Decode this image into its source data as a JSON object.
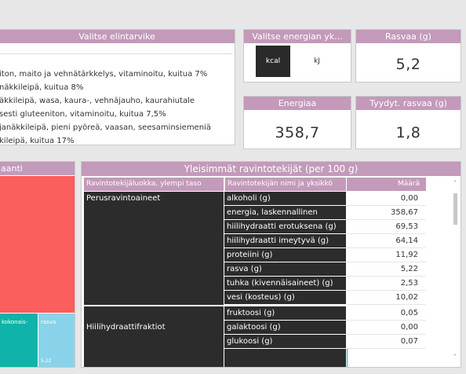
{
  "food_panel": {
    "title": "Valitse elintarvike",
    "items": [
      "iton, maito ja vehnätärkkelys, vitaminoitu, kuitua 7%",
      "näkkileipä, kuitua 8%",
      "äkkileipä, wasa, kaura-, vehnäjauho, kaurahiutale",
      "sesti gluteeniton, vitaminoitu, kuitua 7,5%",
      "janäkkileipä, pieni pyöreä, vaasan, seesaminsiemeniä",
      "kileipä, kuitua 17%"
    ]
  },
  "unit_panel": {
    "title": "Valitse energian yk...",
    "kcal": "kcal",
    "kj": "kJ"
  },
  "kpis": {
    "fat_title": "Rasvaa (g)",
    "fat_value": "5,2",
    "energy_title": "Energiaa",
    "energy_value": "358,7",
    "satfat_title": "Tyydyt. rasvaa  (g)",
    "satfat_value": "1,8"
  },
  "treemap": {
    "title": "aanti",
    "label_a": "kokonais-",
    "label_b": "rasva",
    "value_b": "5,22",
    "colors": {
      "red": "#fc5d5d",
      "teal": "#10b3a9",
      "sky": "#89d3ea"
    }
  },
  "table_panel": {
    "title": "Yleisimmät ravintotekijät (per 100 g)",
    "headers": [
      "Ravintotekijäluokka, ylempi taso",
      "Ravintotekijän nimi ja yksikkö",
      "Määrä"
    ],
    "groups": [
      {
        "category": "Perusravintoaineet",
        "rows": [
          {
            "name": "alkoholi (g)",
            "value": "0,00"
          },
          {
            "name": "energia, laskennallinen",
            "value": "358,67"
          },
          {
            "name": "hiilihydraatti erotuksena (g)",
            "value": "69,53"
          },
          {
            "name": "hiilihydraatti imeytyvä (g)",
            "value": "64,14"
          },
          {
            "name": "proteiini (g)",
            "value": "11,92"
          },
          {
            "name": "rasva (g)",
            "value": "5,22"
          },
          {
            "name": "tuhka (kivennäisaineet) (g)",
            "value": "2,53"
          },
          {
            "name": "vesi (kosteus) (g)",
            "value": "10,02"
          }
        ]
      },
      {
        "category": "Hiilihydraattifraktiot",
        "rows": [
          {
            "name": "fruktoosi (g)",
            "value": "0,05"
          },
          {
            "name": "galaktoosi (g)",
            "value": "0,00"
          },
          {
            "name": "glukoosi (g)",
            "value": "0,07"
          }
        ]
      }
    ]
  },
  "colors": {
    "header": "#c39aba",
    "dark": "#2c2c2c"
  }
}
